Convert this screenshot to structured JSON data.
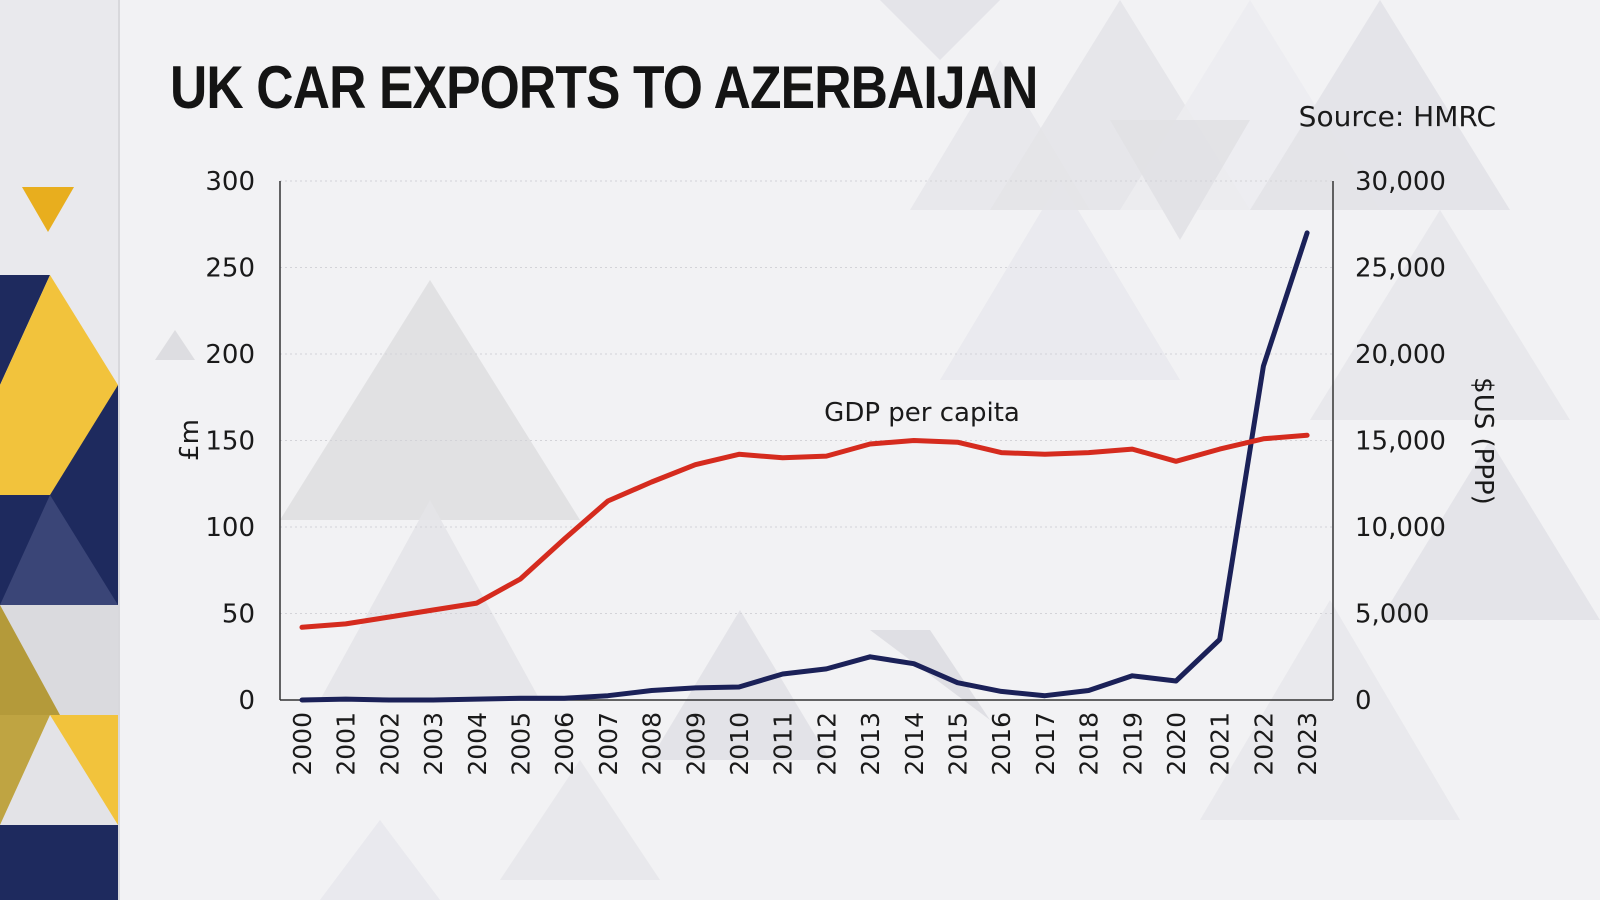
{
  "title": "UK CAR EXPORTS TO AZERBAIJAN",
  "source": "Source: HMRC",
  "colors": {
    "exports_line": "#1b2158",
    "gdp_line": "#d52b1e",
    "axis": "#333333",
    "grid": "#d3d3d8",
    "sidebar_navy": "#1e2a5e",
    "sidebar_gold": "#f2c33c"
  },
  "chart_data": {
    "type": "line",
    "x": [
      "2000",
      "2001",
      "2002",
      "2003",
      "2004",
      "2005",
      "2006",
      "2007",
      "2008",
      "2009",
      "2010",
      "2011",
      "2012",
      "2013",
      "2014",
      "2015",
      "2016",
      "2017",
      "2018",
      "2019",
      "2020",
      "2021",
      "2022",
      "2023"
    ],
    "series": [
      {
        "name": "",
        "axis": "left",
        "values": [
          0,
          0.5,
          0,
          0,
          0.5,
          1,
          1,
          2.5,
          5.5,
          7,
          7.5,
          15,
          18,
          25,
          21,
          10,
          5,
          2.5,
          5.5,
          14,
          11,
          35,
          193,
          270
        ]
      },
      {
        "name": "GDP per capita",
        "axis": "right",
        "values": [
          4200,
          4400,
          4800,
          5200,
          5600,
          7000,
          9300,
          11500,
          12600,
          13600,
          14200,
          14000,
          14100,
          14800,
          15000,
          14900,
          14300,
          14200,
          14300,
          14500,
          13800,
          14500,
          15100,
          15300
        ]
      }
    ],
    "left_axis": {
      "label": "£m",
      "ylim": [
        0,
        300
      ],
      "ticks": [
        0,
        50,
        100,
        150,
        200,
        250,
        300
      ],
      "tick_labels": [
        "0",
        "50",
        "100",
        "150",
        "200",
        "250",
        "300"
      ]
    },
    "right_axis": {
      "label": "$US (PPP)",
      "ylim": [
        0,
        30000
      ],
      "ticks": [
        0,
        5000,
        10000,
        15000,
        20000,
        25000,
        30000
      ],
      "tick_labels": [
        "0",
        "5,000",
        "10,000",
        "15,000",
        "20,000",
        "25,000",
        "30,000"
      ]
    },
    "annotations": [
      {
        "text": "GDP per capita",
        "series": "GDP per capita"
      }
    ],
    "grid": true,
    "legend": "none"
  }
}
